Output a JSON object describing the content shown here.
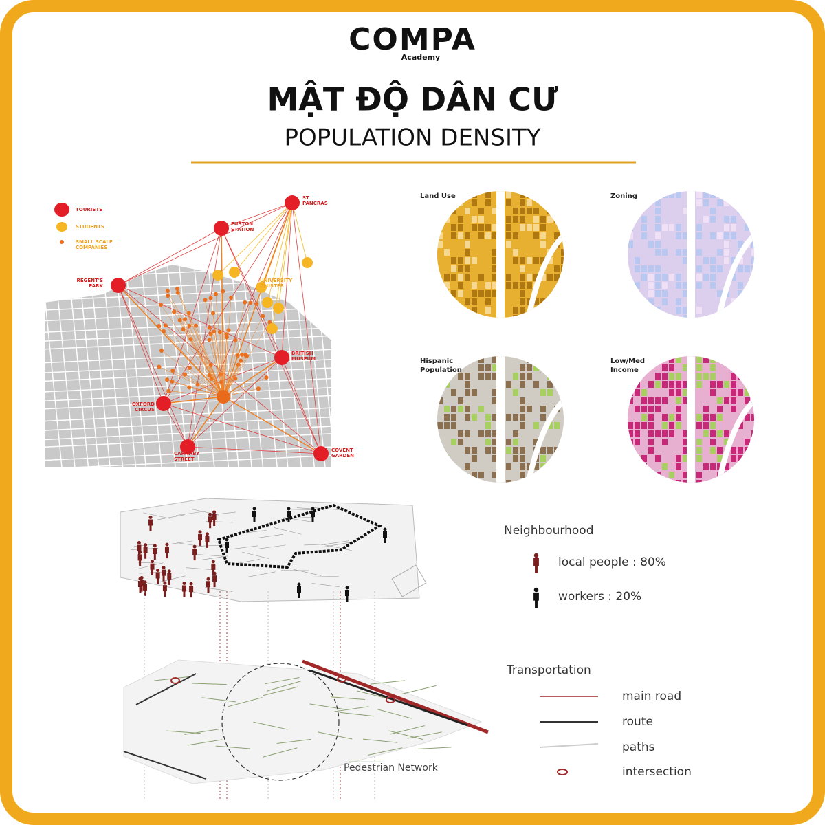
{
  "header": {
    "logo": "COMPA",
    "logo_sub": "Academy",
    "title": "MẬT ĐỘ DÂN CƯ",
    "subtitle": "POPULATION DENSITY"
  },
  "map": {
    "legend": [
      [
        "TOURISTS"
      ],
      [
        "STUDENTS"
      ],
      [
        "SMALL SCALE",
        "COMPANIES"
      ]
    ],
    "places": [
      [
        "ST",
        "PANCRAS"
      ],
      [
        "EUSTON",
        "STATION"
      ],
      [
        "REGENT'S",
        "PARK"
      ],
      [
        "BRITISH",
        "MUSEUM"
      ],
      [
        "OXFORD",
        "CIRCUS"
      ],
      [
        "CARNABY",
        "STREET"
      ],
      [
        "COVENT",
        "GARDEN"
      ],
      [
        "UNIVERSITY",
        "CLUSTER"
      ]
    ]
  },
  "panels": [
    {
      "title": [
        "Land Use"
      ]
    },
    {
      "title": [
        "Zoning"
      ]
    },
    {
      "title": [
        "Hispanic",
        "Population"
      ]
    },
    {
      "title": [
        "Low/Med",
        "Income"
      ]
    }
  ],
  "diagram": {
    "label": "Pedestrian Network",
    "neighbourhood": {
      "title": "Neighbourhood",
      "items": [
        "local people : 80%",
        "workers : 20%"
      ]
    },
    "transportation": {
      "title": "Transportation",
      "items": [
        "main road",
        "route",
        "paths",
        "intersection"
      ]
    }
  }
}
